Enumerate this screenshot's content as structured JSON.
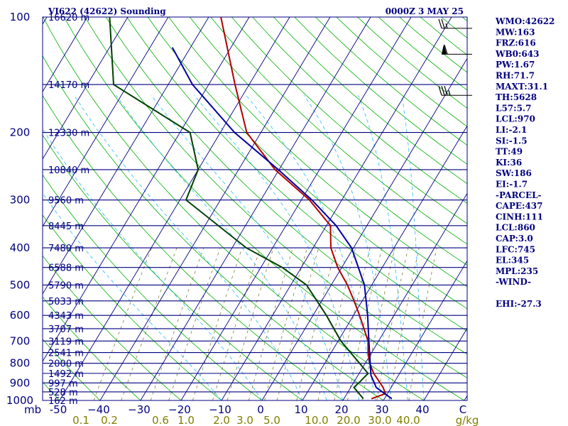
{
  "header": {
    "station": "VI622 (42622) Sounding",
    "time": "0000Z  3 MAY 25"
  },
  "chart_data": {
    "type": "line",
    "title": "VI622 (42622) Sounding",
    "xlabel": "",
    "ylabel": "mb",
    "temperature_axis_units": "°C",
    "mixing_ratio_units": "g/kg",
    "xlim": [
      -50,
      50
    ],
    "ylim": [
      1000,
      100
    ],
    "y_scale": "log",
    "grid": true,
    "pressure_ticks": [
      100,
      200,
      300,
      400,
      500,
      600,
      700,
      800,
      900,
      1000
    ],
    "pressure_tick_labels": [
      "100",
      "200",
      "300",
      "400",
      "500",
      "600",
      "700",
      "800",
      "900",
      "1000"
    ],
    "temperature_ticks": [
      -50,
      -40,
      -30,
      -20,
      -10,
      0,
      10,
      20,
      30,
      40,
      50
    ],
    "temperature_tick_labels": [
      "-50",
      "−40",
      "−30",
      "−20",
      "−10",
      "0",
      "10",
      "20",
      "30",
      "40",
      "C"
    ],
    "mixing_ratio_labels": [
      "0.1",
      "0.2",
      "0.6",
      "1.0",
      "2.0",
      "3.0",
      "5.0",
      "10.0",
      "20.0",
      "30.0",
      "40.0",
      "g/kg"
    ],
    "height_labels": [
      {
        "p": 100,
        "text": "16620 m"
      },
      {
        "p": 150,
        "text": "14170 m"
      },
      {
        "p": 200,
        "text": "12330 m"
      },
      {
        "p": 250,
        "text": "10840 m"
      },
      {
        "p": 300,
        "text": "9560 m"
      },
      {
        "p": 350,
        "text": "8445 m"
      },
      {
        "p": 400,
        "text": "7480 m"
      },
      {
        "p": 450,
        "text": "6588 m"
      },
      {
        "p": 500,
        "text": "5790 m"
      },
      {
        "p": 550,
        "text": "5033 m"
      },
      {
        "p": 600,
        "text": "4343 m"
      },
      {
        "p": 650,
        "text": "3707 m"
      },
      {
        "p": 700,
        "text": "3119 m"
      },
      {
        "p": 750,
        "text": "2541 m"
      },
      {
        "p": 800,
        "text": "2000 m"
      },
      {
        "p": 850,
        "text": "1492 m"
      },
      {
        "p": 900,
        "text": "997 m"
      },
      {
        "p": 950,
        "text": "528 m"
      },
      {
        "p": 1000,
        "text": "162 m"
      }
    ],
    "series": [
      {
        "name": "",
        "color": "#b00000",
        "points": [
          {
            "p": 990,
            "t": 26.8
          },
          {
            "p": 960,
            "t": 29.5
          },
          {
            "p": 925,
            "t": 28.0
          },
          {
            "p": 850,
            "t": 23.6
          },
          {
            "p": 800,
            "t": 21.1
          },
          {
            "p": 750,
            "t": 19.1
          },
          {
            "p": 700,
            "t": 17.4
          },
          {
            "p": 600,
            "t": 11.5
          },
          {
            "p": 550,
            "t": 8.0
          },
          {
            "p": 500,
            "t": 4.0
          },
          {
            "p": 450,
            "t": -1.0
          },
          {
            "p": 400,
            "t": -5.6
          },
          {
            "p": 350,
            "t": -9.0
          },
          {
            "p": 300,
            "t": -18.0
          },
          {
            "p": 250,
            "t": -31.0
          },
          {
            "p": 200,
            "t": -43.5
          },
          {
            "p": 150,
            "t": -53.5
          },
          {
            "p": 100,
            "t": -67.0
          }
        ]
      },
      {
        "name": "",
        "color": "#004000",
        "points": [
          {
            "p": 990,
            "t": 24.8
          },
          {
            "p": 925,
            "t": 20.8
          },
          {
            "p": 890,
            "t": 21.5
          },
          {
            "p": 850,
            "t": 22.2
          },
          {
            "p": 700,
            "t": 10.7
          },
          {
            "p": 600,
            "t": 3.3
          },
          {
            "p": 500,
            "t": -6.1
          },
          {
            "p": 450,
            "t": -14.7
          },
          {
            "p": 400,
            "t": -26.5
          },
          {
            "p": 300,
            "t": -48.5
          },
          {
            "p": 250,
            "t": -50.0
          },
          {
            "p": 200,
            "t": -57.5
          },
          {
            "p": 150,
            "t": -83.5
          },
          {
            "p": 100,
            "t": -94.5
          }
        ]
      },
      {
        "name": "",
        "color": "#0000a0",
        "points": [
          {
            "p": 990,
            "t": 31.8
          },
          {
            "p": 925,
            "t": 26.3
          },
          {
            "p": 860,
            "t": 23.2
          },
          {
            "p": 700,
            "t": 17.6
          },
          {
            "p": 600,
            "t": 13.5
          },
          {
            "p": 500,
            "t": 8.2
          },
          {
            "p": 400,
            "t": -0.5
          },
          {
            "p": 350,
            "t": -7.6
          },
          {
            "p": 300,
            "t": -17.4
          },
          {
            "p": 250,
            "t": -30.2
          },
          {
            "p": 200,
            "t": -46.5
          },
          {
            "p": 150,
            "t": -64.0
          },
          {
            "p": 120,
            "t": -74.5
          }
        ]
      }
    ],
    "wind_barbs": [
      {
        "p": 107,
        "speed_kt": 25
      },
      {
        "p": 125,
        "speed_kt": 60
      },
      {
        "p": 160,
        "speed_kt": 35
      }
    ]
  },
  "indices": [
    "WMO:42622",
    "MW:163",
    "FRZ:616",
    "WB0:643",
    "PW:1.67",
    "RH:71.7",
    "MAXT:31.1",
    "TH:5628",
    "L57:5.7",
    "LCL:970",
    "LI:-2.1",
    "SI:-1.5",
    "TT:49",
    "KI:36",
    "SW:186",
    "EI:-1.7",
    "-PARCEL-",
    "CAPE:437",
    "CINH:111",
    "LCL:860",
    "CAP:3.0",
    "LFC:745",
    "EL:345",
    "MPL:235",
    "-WIND-",
    "",
    "EHI:-27.3"
  ],
  "colors": {
    "isobar": "#000080",
    "isotherm": "#000080",
    "dry_adiabat": "#00b000",
    "moist_adiabat": "#40c0ff",
    "mixing_ratio": "#808040",
    "text": "#000080"
  }
}
